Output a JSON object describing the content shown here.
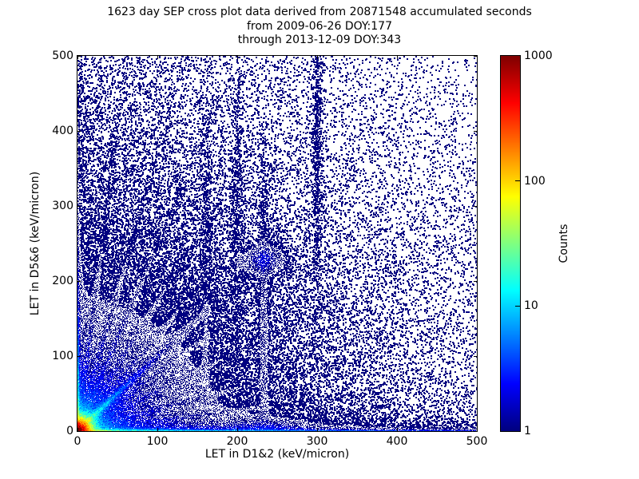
{
  "figure": {
    "background": "#ffffff"
  },
  "chart_data": {
    "type": "heatmap",
    "title_lines": [
      "1623 day SEP cross plot data derived from 20871548 accumulated seconds",
      "from 2009-06-26 DOY:177",
      "through 2013-12-09 DOY:343"
    ],
    "xlabel": "LET in D1&2 (keV/micron)",
    "ylabel": "LET in D5&6 (keV/micron)",
    "xlim": [
      0,
      500
    ],
    "ylim": [
      0,
      500
    ],
    "xticks": [
      0,
      100,
      200,
      300,
      400,
      500
    ],
    "yticks": [
      0,
      100,
      200,
      300,
      400,
      500
    ],
    "grid": false,
    "marker_color_low": "#000080",
    "colorbar": {
      "label": "Counts",
      "scale": "log",
      "min": 1,
      "max": 1000,
      "ticks": [
        1,
        10,
        100,
        1000
      ],
      "colormap": "jet",
      "position": "right"
    },
    "density_model": {
      "description": "counts per bin as sum of components, jet colormap on log10(1..1000)",
      "seed": 20871548,
      "hit_rate": 0.9,
      "components": [
        {
          "kind": "radial",
          "a": 3000,
          "s": 4.3
        },
        {
          "kind": "radial",
          "a": 16,
          "s": 15
        },
        {
          "kind": "radial",
          "a": 3.5,
          "s": 50
        },
        {
          "kind": "radial",
          "a": 0.9,
          "s": 140
        },
        {
          "kind": "const",
          "a": 0.016
        },
        {
          "kind": "xyexp",
          "a": 0.2,
          "sx": 280,
          "sy": 500
        },
        {
          "kind": "xyexp",
          "a": 90,
          "sx": 28,
          "sy": 1.3
        },
        {
          "kind": "xyexp",
          "a": 16,
          "sx": 300,
          "sy": 1.1
        },
        {
          "kind": "xyexp",
          "a": 3.5,
          "sx": 230,
          "sy": 3.5
        },
        {
          "kind": "xyexp",
          "a": 1.5,
          "sx": 280,
          "sy": 14
        },
        {
          "kind": "xyexp",
          "a": 60,
          "sx": 1.3,
          "sy": 35
        },
        {
          "kind": "xyexp",
          "a": 8,
          "sx": 1.1,
          "sy": 120
        },
        {
          "kind": "xyexp",
          "a": 2.5,
          "sx": 3.5,
          "sy": 150
        },
        {
          "kind": "ray",
          "angle": 45,
          "a": 28,
          "w": 2.2,
          "L": 32
        },
        {
          "kind": "ray",
          "angle": 45,
          "a": 1.3,
          "w": 4.5,
          "L": 105
        },
        {
          "kind": "ray",
          "angle": 83,
          "a": 1.1,
          "w": 2.3,
          "L": 150
        },
        {
          "kind": "ray",
          "angle": 75,
          "a": 0.9,
          "w": 2.3,
          "L": 160
        },
        {
          "kind": "ray",
          "angle": 68,
          "a": 1.1,
          "w": 2.2,
          "L": 170
        },
        {
          "kind": "ray",
          "angle": 60,
          "a": 0.8,
          "w": 2.4,
          "L": 140
        },
        {
          "kind": "ray",
          "angle": 52,
          "a": 0.7,
          "w": 2.4,
          "L": 125
        },
        {
          "kind": "ray",
          "angle": 38,
          "a": 0.6,
          "w": 2.4,
          "L": 130
        },
        {
          "kind": "ray",
          "angle": 28,
          "a": 0.55,
          "w": 2.4,
          "L": 140
        },
        {
          "kind": "ray",
          "angle": 16,
          "a": 0.5,
          "w": 2.4,
          "L": 160
        },
        {
          "kind": "ray",
          "angle": 8,
          "a": 0.5,
          "w": 2.2,
          "L": 180
        },
        {
          "kind": "blob",
          "x": 233,
          "y": 228,
          "sx": 16,
          "sy": 12,
          "a": 1.4
        },
        {
          "kind": "blob",
          "x": 233,
          "y": 0,
          "sx": 30,
          "sy": 9,
          "a": 1.2
        },
        {
          "kind": "vband",
          "x": 233,
          "w": 4,
          "yc": 140,
          "ys": 110,
          "a": 0.55
        },
        {
          "kind": "vband",
          "x": 300,
          "w": 3.5,
          "yc": 380,
          "ys": 130,
          "a": 0.4
        },
        {
          "kind": "vband",
          "x": 200,
          "w": 4,
          "yc": 300,
          "ys": 120,
          "a": 0.25
        },
        {
          "kind": "vband",
          "x": 160,
          "w": 4,
          "yc": 220,
          "ys": 120,
          "a": 0.2
        }
      ]
    }
  }
}
